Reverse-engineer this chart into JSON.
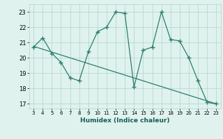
{
  "x_data": [
    3,
    4,
    5,
    6,
    7,
    8,
    9,
    10,
    11,
    12,
    13,
    14,
    15,
    16,
    17,
    18,
    19,
    20,
    21,
    22,
    23
  ],
  "y_data": [
    20.7,
    21.3,
    20.3,
    19.7,
    18.7,
    18.5,
    20.4,
    21.7,
    22.0,
    23.0,
    22.9,
    18.1,
    20.5,
    20.7,
    23.0,
    21.2,
    21.1,
    20.0,
    18.5,
    17.1,
    17.0
  ],
  "trend_x": [
    3,
    23
  ],
  "trend_y": [
    20.75,
    17.0
  ],
  "line_color": "#2d7d6e",
  "bg_color": "#dff2ee",
  "grid_color": "#b8d8d2",
  "xlabel": "Humidex (Indice chaleur)",
  "xlim": [
    2.5,
    23.5
  ],
  "ylim": [
    16.7,
    23.5
  ],
  "xticks": [
    3,
    4,
    5,
    6,
    7,
    8,
    9,
    10,
    11,
    12,
    13,
    14,
    15,
    16,
    17,
    18,
    19,
    20,
    21,
    22,
    23
  ],
  "yticks": [
    17,
    18,
    19,
    20,
    21,
    22,
    23
  ]
}
